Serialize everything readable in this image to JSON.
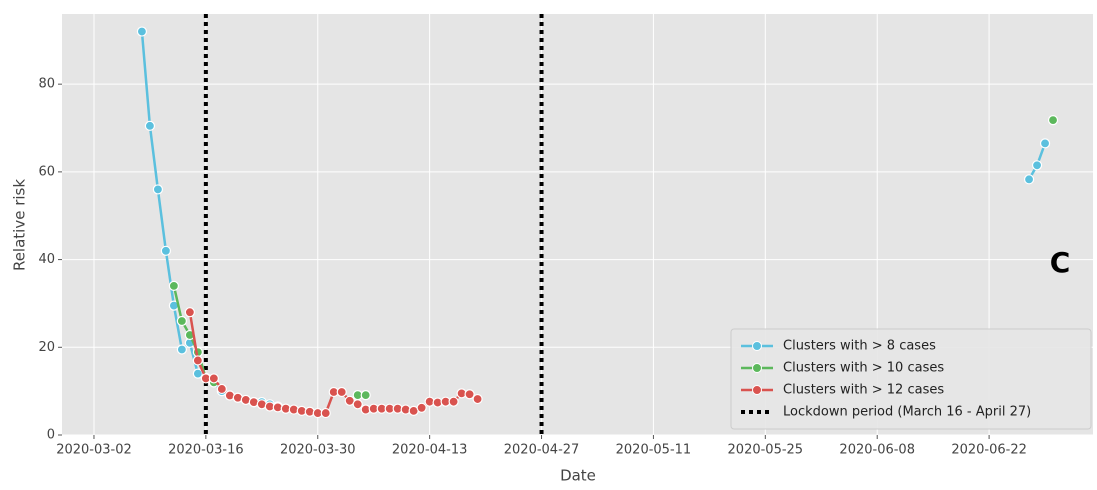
{
  "chart_data": {
    "type": "line",
    "x_label": "Date",
    "y_label": "Relative risk",
    "annotation": "C",
    "xlim": [
      "2020-02-27",
      "2020-07-05"
    ],
    "ylim": [
      0,
      96
    ],
    "xticks": [
      "2020-03-02",
      "2020-03-16",
      "2020-03-30",
      "2020-04-13",
      "2020-04-27",
      "2020-05-11",
      "2020-05-25",
      "2020-06-08",
      "2020-06-22"
    ],
    "yticks": [
      0,
      20,
      40,
      60,
      80
    ],
    "grid": true,
    "legend": "lower right",
    "series": [
      {
        "name": "Clusters with > 8 cases",
        "color": "#5bc0de",
        "x": [
          "2020-03-08",
          "2020-03-09",
          "2020-03-10",
          "2020-03-11",
          "2020-03-12",
          "2020-03-13",
          "2020-03-14",
          "2020-03-15",
          "2020-03-16",
          "2020-03-17",
          "2020-03-18",
          "2020-03-19",
          "2020-03-20",
          "2020-03-21",
          "2020-03-22",
          "2020-03-23",
          "2020-03-24",
          "2020-03-25",
          "2020-03-26",
          "2020-03-27",
          "2020-06-27",
          "2020-06-28",
          "2020-06-29"
        ],
        "values": [
          92,
          70.5,
          56,
          42,
          29.5,
          19.5,
          21,
          14,
          13,
          12,
          10,
          9,
          8.5,
          8,
          7.5,
          7.5,
          7,
          6.5,
          6,
          null,
          58.3,
          61.5,
          66.5
        ]
      },
      {
        "name": "Clusters with > 10 cases",
        "color": "#5cb85c",
        "x": [
          "2020-03-12",
          "2020-03-13",
          "2020-03-14",
          "2020-03-15",
          "2020-03-16",
          "2020-03-17",
          "2020-03-18",
          "2020-04-04",
          "2020-04-05",
          "2020-04-06",
          "2020-06-30"
        ],
        "values": [
          34,
          26,
          22.8,
          18.9,
          13,
          12,
          null,
          9.1,
          9.1,
          null,
          71.8
        ]
      },
      {
        "name": "Clusters with > 12 cases",
        "color": "#d9534f",
        "x": [
          "2020-03-14",
          "2020-03-15",
          "2020-03-16",
          "2020-03-17",
          "2020-03-18",
          "2020-03-19",
          "2020-03-20",
          "2020-03-21",
          "2020-03-22",
          "2020-03-23",
          "2020-03-24",
          "2020-03-25",
          "2020-03-26",
          "2020-03-27",
          "2020-03-28",
          "2020-03-29",
          "2020-03-30",
          "2020-03-31",
          "2020-04-01",
          "2020-04-02",
          "2020-04-03",
          "2020-04-04",
          "2020-04-05",
          "2020-04-06",
          "2020-04-07",
          "2020-04-08",
          "2020-04-09",
          "2020-04-10",
          "2020-04-11",
          "2020-04-12",
          "2020-04-13",
          "2020-04-14",
          "2020-04-15",
          "2020-04-16",
          "2020-04-17",
          "2020-04-18",
          "2020-04-19"
        ],
        "values": [
          28,
          17,
          12.9,
          12.9,
          10.5,
          9,
          8.5,
          8,
          7.5,
          7,
          6.5,
          6.3,
          6,
          5.8,
          5.5,
          5.3,
          5,
          5,
          9.8,
          9.8,
          7.8,
          7,
          5.8,
          6,
          6,
          6,
          6,
          5.8,
          5.5,
          6.2,
          7.6,
          7.4,
          7.6,
          7.6,
          9.5,
          9.3,
          8.2
        ]
      }
    ],
    "vlines": {
      "name": "Lockdown period (March 16 - April 27)",
      "color": "#000000",
      "x": [
        "2020-03-16",
        "2020-04-27"
      ]
    }
  }
}
